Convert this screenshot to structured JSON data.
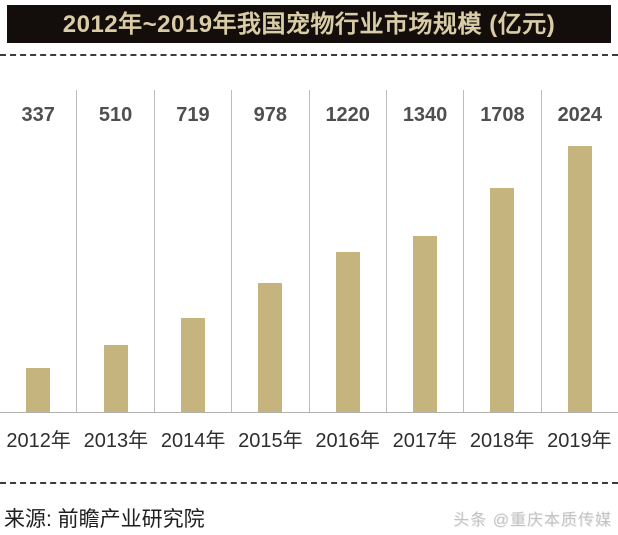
{
  "title": "2012年~2019年我国宠物行业市场规模 (亿元)",
  "source": "来源: 前瞻产业研究院",
  "watermark": "头条 @重庆本质传媒",
  "colors": {
    "bar": "#c6b47f",
    "title_bg": "#130e0b",
    "title_text": "#d9cca6",
    "value_label": "#4f4f4f",
    "axis_label": "#2e2e2e",
    "separator": "#bcbcbc",
    "baseline": "#b0b0b0"
  },
  "chart_data": {
    "type": "bar",
    "title": "2012年~2019年我国宠物行业市场规模 (亿元)",
    "unit": "亿元",
    "categories": [
      "2012年",
      "2013年",
      "2014年",
      "2015年",
      "2016年",
      "2017年",
      "2018年",
      "2019年"
    ],
    "values": [
      337,
      510,
      719,
      978,
      1220,
      1340,
      1708,
      2024
    ],
    "xlabel": "",
    "ylabel": "",
    "ylim": [
      0,
      2450
    ],
    "data_labels": true,
    "legend": false,
    "grid": "vertical-column-separators",
    "bar_color": "#c6b47f"
  }
}
